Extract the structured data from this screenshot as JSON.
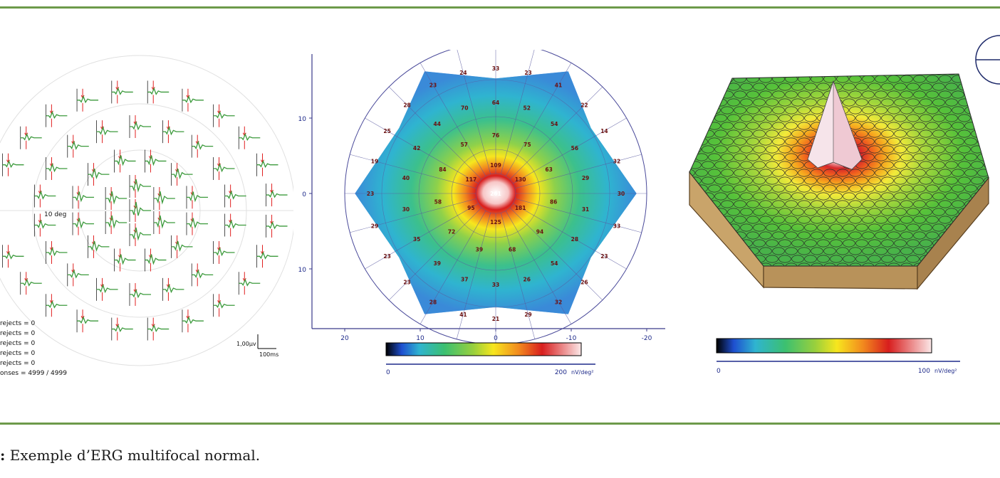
{
  "trace_panel": {
    "degree_label": "10 deg",
    "scale_amplitude": "1,00μv",
    "scale_time": "100ms",
    "stats": [
      "rejects = 0",
      "rejects = 0",
      "rejects = 0",
      "rejects = 0",
      "rejects = 0",
      "onses = 4999 / 4999"
    ]
  },
  "map_2d": {
    "y_ticks": [
      "10",
      "0",
      "-10"
    ],
    "x_ticks": [
      "20",
      "10",
      "0",
      "-10",
      "-20"
    ],
    "colorbar_min": "0",
    "colorbar_max": "200",
    "colorbar_unit": "nV/deg²",
    "ring_values": {
      "center": [
        "261"
      ],
      "ring1": [
        "109",
        "130",
        "181",
        "125",
        "95",
        "117"
      ],
      "ring2": [
        "76",
        "75",
        "63",
        "86",
        "94",
        "68",
        "39",
        "72",
        "58",
        "84",
        "57"
      ],
      "ring3": [
        "64",
        "52",
        "54",
        "56",
        "29",
        "31",
        "28",
        "54",
        "26",
        "33",
        "37",
        "39",
        "35",
        "30",
        "40",
        "42",
        "44",
        "70"
      ],
      "ring4": [
        "33",
        "23",
        "41",
        "22",
        "14",
        "32",
        "30",
        "33",
        "23",
        "26",
        "32",
        "29",
        "21",
        "41",
        "28",
        "23",
        "23",
        "29",
        "23",
        "19",
        "25",
        "28",
        "23",
        "24"
      ]
    }
  },
  "map_3d": {
    "colorbar_min": "0",
    "colorbar_max": "100",
    "colorbar_unit": "nV/deg²"
  },
  "caption": {
    "prefix": ":",
    "text": "Exemple d’ERG multifocal normal."
  },
  "colors": {
    "rule": "#6d9a4a",
    "trace": "#3c9a3c",
    "stimulus": "#e02020"
  }
}
